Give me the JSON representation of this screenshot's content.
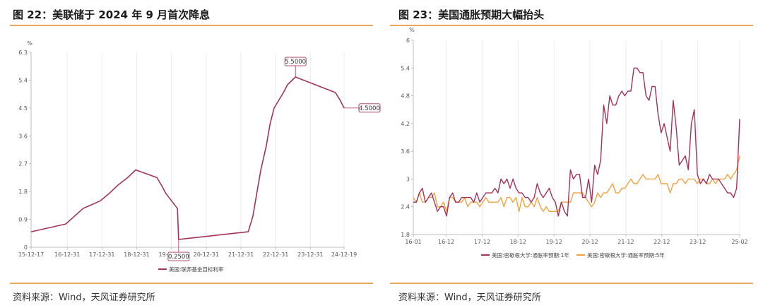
{
  "left": {
    "title": "图 22：美联储于 2024 年 9 月首次降息",
    "source": "资料来源：Wind，天风证券研究所"
  },
  "right": {
    "title": "图 23：美国通胀预期大幅抬头",
    "source": "资料来源：Wind，天风证券研究所"
  },
  "colors": {
    "rule": "#e9a95a",
    "series1": "#a3325c",
    "series2": "#f3a23d"
  },
  "chart_data": [
    {
      "type": "line",
      "unit": "%",
      "ylim": [
        0,
        6.3
      ],
      "yticks": [
        "0",
        "0.9",
        "1.8",
        "2.7",
        "3.6",
        "4.5",
        "5.4",
        "6.3"
      ],
      "xlim": [
        "2015-12-17",
        "2024-12-19"
      ],
      "xticks": [
        "15-12-17",
        "16-12-31",
        "17-12-31",
        "18-12-31",
        "19-12-31",
        "20-12-31",
        "21-12-31",
        "22-12-31",
        "23-12-31",
        "24-12-19"
      ],
      "grid": "vertical",
      "legend": "bottom",
      "series": [
        {
          "name": "美国:联邦基金目标利率",
          "points": [
            [
              "2015-12-17",
              0.5
            ],
            [
              "2016-12-15",
              0.75
            ],
            [
              "2017-03-16",
              1.0
            ],
            [
              "2017-06-15",
              1.25
            ],
            [
              "2017-12-14",
              1.5
            ],
            [
              "2018-03-22",
              1.75
            ],
            [
              "2018-06-14",
              2.0
            ],
            [
              "2018-09-27",
              2.25
            ],
            [
              "2018-12-20",
              2.5
            ],
            [
              "2019-08-01",
              2.25
            ],
            [
              "2019-09-19",
              2.0
            ],
            [
              "2019-10-31",
              1.75
            ],
            [
              "2020-03-04",
              1.25
            ],
            [
              "2020-03-16",
              0.25
            ],
            [
              "2022-03-17",
              0.5
            ],
            [
              "2022-05-05",
              1.0
            ],
            [
              "2022-06-16",
              1.75
            ],
            [
              "2022-07-28",
              2.5
            ],
            [
              "2022-09-22",
              3.25
            ],
            [
              "2022-11-03",
              4.0
            ],
            [
              "2022-12-15",
              4.5
            ],
            [
              "2023-02-02",
              4.75
            ],
            [
              "2023-03-23",
              5.0
            ],
            [
              "2023-05-04",
              5.25
            ],
            [
              "2023-07-27",
              5.5
            ],
            [
              "2024-09-19",
              5.0
            ],
            [
              "2024-11-08",
              4.75
            ],
            [
              "2024-12-19",
              4.5
            ]
          ]
        }
      ],
      "annotations": [
        {
          "date": "2020-03-16",
          "value": 0.25,
          "text": "0.2500"
        },
        {
          "date": "2023-07-27",
          "value": 5.5,
          "text": "5.5000"
        },
        {
          "date": "2024-12-19",
          "value": 4.5,
          "text": "4.5000"
        }
      ]
    },
    {
      "type": "line",
      "unit": "%",
      "ylim": [
        1.8,
        6
      ],
      "yticks": [
        "1.8",
        "2.4",
        "3",
        "3.6",
        "4.2",
        "4.8",
        "5.4",
        "6"
      ],
      "xlim": [
        "2016-01",
        "2025-02"
      ],
      "xticks": [
        "16-01",
        "16-12",
        "17-12",
        "18-12",
        "19-12",
        "20-12",
        "21-12",
        "22-12",
        "23-12",
        "25-02"
      ],
      "grid": "vertical",
      "legend": "bottom",
      "series": [
        {
          "name": "美国:密歇根大学:通胀率预期:1年",
          "monthly_from": "2016-01",
          "values": [
            2.5,
            2.5,
            2.7,
            2.8,
            2.5,
            2.6,
            2.7,
            2.5,
            2.3,
            2.4,
            2.4,
            2.2,
            2.6,
            2.7,
            2.5,
            2.5,
            2.6,
            2.6,
            2.6,
            2.6,
            2.5,
            2.7,
            2.5,
            2.6,
            2.7,
            2.7,
            2.7,
            2.8,
            2.7,
            3.0,
            2.9,
            3.0,
            2.8,
            3.0,
            2.8,
            2.7,
            2.7,
            2.6,
            2.6,
            2.5,
            2.6,
            2.9,
            2.7,
            2.6,
            2.7,
            2.8,
            2.6,
            2.5,
            2.2,
            2.5,
            2.3,
            2.2,
            3.2,
            3.0,
            3.1,
            3.1,
            2.6,
            2.6,
            3.0,
            2.5,
            3.3,
            3.1,
            3.4,
            4.6,
            4.2,
            4.8,
            4.6,
            4.6,
            4.8,
            4.9,
            4.8,
            4.9,
            4.9,
            5.4,
            5.4,
            5.3,
            5.3,
            4.8,
            4.7,
            5.0,
            5.0,
            4.4,
            4.0,
            4.2,
            3.9,
            3.6,
            4.7,
            4.1,
            3.3,
            3.4,
            3.5,
            3.2,
            4.2,
            4.5,
            3.1,
            2.9,
            3.0,
            2.9,
            3.1,
            3.0,
            3.0,
            3.0,
            2.9,
            2.8,
            2.7,
            2.7,
            2.6,
            2.8,
            4.3
          ]
        },
        {
          "name": "美国:密歇根大学:通胀率预期:5年",
          "monthly_from": "2016-01",
          "values": [
            2.6,
            2.5,
            2.7,
            2.5,
            2.5,
            2.6,
            2.6,
            2.7,
            2.4,
            2.4,
            2.5,
            2.3,
            2.6,
            2.6,
            2.5,
            2.5,
            2.5,
            2.6,
            2.4,
            2.5,
            2.5,
            2.5,
            2.4,
            2.5,
            2.6,
            2.5,
            2.5,
            2.5,
            2.5,
            2.6,
            2.4,
            2.6,
            2.6,
            2.5,
            2.6,
            2.3,
            2.6,
            2.4,
            2.4,
            2.5,
            2.4,
            2.6,
            2.4,
            2.3,
            2.4,
            2.3,
            2.3,
            2.3,
            2.3,
            2.5,
            2.5,
            2.5,
            2.5,
            2.7,
            2.7,
            2.7,
            2.7,
            2.6,
            2.5,
            2.4,
            2.5,
            2.7,
            2.6,
            2.7,
            2.7,
            2.8,
            2.9,
            2.7,
            2.7,
            2.8,
            2.8,
            2.9,
            3.0,
            2.9,
            2.9,
            3.0,
            3.1,
            3.0,
            3.0,
            3.0,
            3.0,
            3.1,
            2.9,
            2.9,
            2.9,
            2.7,
            2.9,
            2.9,
            3.0,
            3.0,
            2.9,
            3.0,
            3.0,
            3.0,
            2.9,
            3.0,
            3.0,
            2.9,
            2.9,
            3.0,
            2.9,
            3.0,
            3.0,
            3.0,
            3.1,
            3.0,
            3.1,
            3.2,
            3.5
          ]
        }
      ]
    }
  ]
}
